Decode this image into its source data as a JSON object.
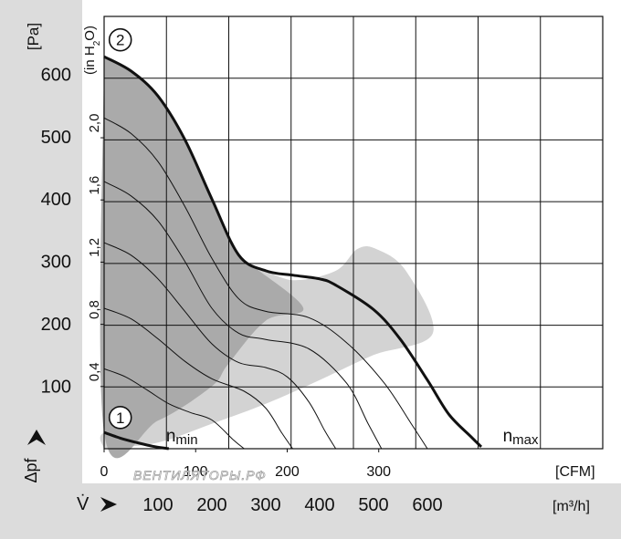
{
  "colors": {
    "left_band": "#dcdcdc",
    "bottom_band": "#dcdcdc",
    "operating_region": "#aaaaaa",
    "outer_region": "#d3d3d3",
    "grid": "#111111",
    "curve": "#111111"
  },
  "watermark": "ВЕНТИЛЯТОРЫ.РФ",
  "chart_data": {
    "type": "line",
    "grid": true,
    "y_axis_pa": {
      "label": "[Pa]",
      "ylim": [
        0,
        650
      ],
      "ticks": [
        100,
        200,
        300,
        400,
        500,
        600
      ],
      "tick_labels": [
        "100",
        "200",
        "300",
        "400",
        "500",
        "600"
      ]
    },
    "y_axis_inh2o": {
      "label": "(in H2O)",
      "label_main": "(in H",
      "label_sub": "2",
      "label_end": "O)",
      "ticks": [
        0.4,
        0.8,
        1.2,
        1.6,
        2.0
      ],
      "tick_labels": [
        "0,4",
        "0,8",
        "1,2",
        "1,6",
        "2,0"
      ]
    },
    "x_axis_cfm": {
      "label": "[CFM]",
      "ticks": [
        0,
        100,
        200,
        300
      ],
      "tick_labels": [
        "0",
        "100",
        "200",
        "300"
      ]
    },
    "x_axis_m3h": {
      "label": "[m³/h]",
      "xlim": [
        0,
        800
      ],
      "ticks": [
        100,
        200,
        300,
        400,
        500,
        600
      ],
      "tick_labels": [
        "100",
        "200",
        "300",
        "400",
        "500",
        "600"
      ]
    },
    "pressure_symbol": "Δpf",
    "flow_symbol": "V̇",
    "series": [
      {
        "name": "2",
        "x": [
          0,
          50,
          100,
          150,
          200,
          250,
          300,
          350,
          400,
          430,
          500,
          550,
          600,
          640,
          680,
          700
        ],
        "y": [
          628,
          605,
          565,
          495,
          400,
          310,
          285,
          278,
          272,
          262,
          223,
          175,
          110,
          55,
          20,
          3
        ]
      },
      {
        "name": "1",
        "x": [
          0,
          30,
          60,
          90,
          120
        ],
        "y": [
          26,
          17,
          10,
          4,
          0
        ]
      }
    ],
    "intermediate_curves": [
      {
        "x": [
          0,
          50,
          100,
          150,
          200,
          250,
          300,
          380,
          450,
          520,
          570,
          600
        ],
        "y": [
          530,
          505,
          460,
          388,
          305,
          240,
          220,
          210,
          170,
          105,
          40,
          0
        ]
      },
      {
        "x": [
          0,
          50,
          100,
          150,
          200,
          250,
          300,
          380,
          450,
          490,
          515
        ],
        "y": [
          428,
          405,
          365,
          300,
          225,
          185,
          175,
          160,
          105,
          40,
          0
        ]
      },
      {
        "x": [
          0,
          50,
          100,
          150,
          200,
          250,
          300,
          340,
          380,
          410,
          430
        ],
        "y": [
          330,
          310,
          272,
          220,
          168,
          138,
          130,
          115,
          75,
          28,
          0
        ]
      },
      {
        "x": [
          0,
          50,
          100,
          150,
          200,
          260,
          300,
          330,
          350
        ],
        "y": [
          225,
          208,
          176,
          140,
          112,
          92,
          65,
          25,
          0
        ]
      },
      {
        "x": [
          0,
          40,
          80,
          120,
          160,
          200,
          240,
          260
        ],
        "y": [
          128,
          115,
          94,
          72,
          58,
          46,
          14,
          0
        ]
      }
    ],
    "operating_region": [
      [
        0,
        628
      ],
      [
        50,
        605
      ],
      [
        100,
        565
      ],
      [
        150,
        495
      ],
      [
        200,
        400
      ],
      [
        250,
        310
      ],
      [
        280,
        290
      ],
      [
        370,
        225
      ],
      [
        300,
        205
      ],
      [
        230,
        135
      ],
      [
        200,
        100
      ],
      [
        100,
        45
      ],
      [
        0,
        26
      ]
    ],
    "outer_region": [
      [
        0,
        0
      ],
      [
        100,
        10
      ],
      [
        200,
        40
      ],
      [
        300,
        72
      ],
      [
        400,
        110
      ],
      [
        500,
        150
      ],
      [
        610,
        185
      ],
      [
        560,
        285
      ],
      [
        505,
        320
      ],
      [
        470,
        320
      ],
      [
        430,
        285
      ],
      [
        350,
        270
      ],
      [
        280,
        290
      ],
      [
        370,
        225
      ],
      [
        300,
        205
      ],
      [
        230,
        135
      ],
      [
        200,
        100
      ],
      [
        100,
        45
      ],
      [
        0,
        26
      ]
    ],
    "annotations": [
      {
        "type": "circled",
        "text": "2",
        "x": 30,
        "y": 655
      },
      {
        "type": "circled",
        "text": "1",
        "x": 30,
        "y": 50
      },
      {
        "type": "text",
        "text": "n",
        "sub": "min",
        "x": 115,
        "y": 12
      },
      {
        "type": "text",
        "text": "n",
        "sub": "max",
        "x": 740,
        "y": 12
      }
    ]
  }
}
